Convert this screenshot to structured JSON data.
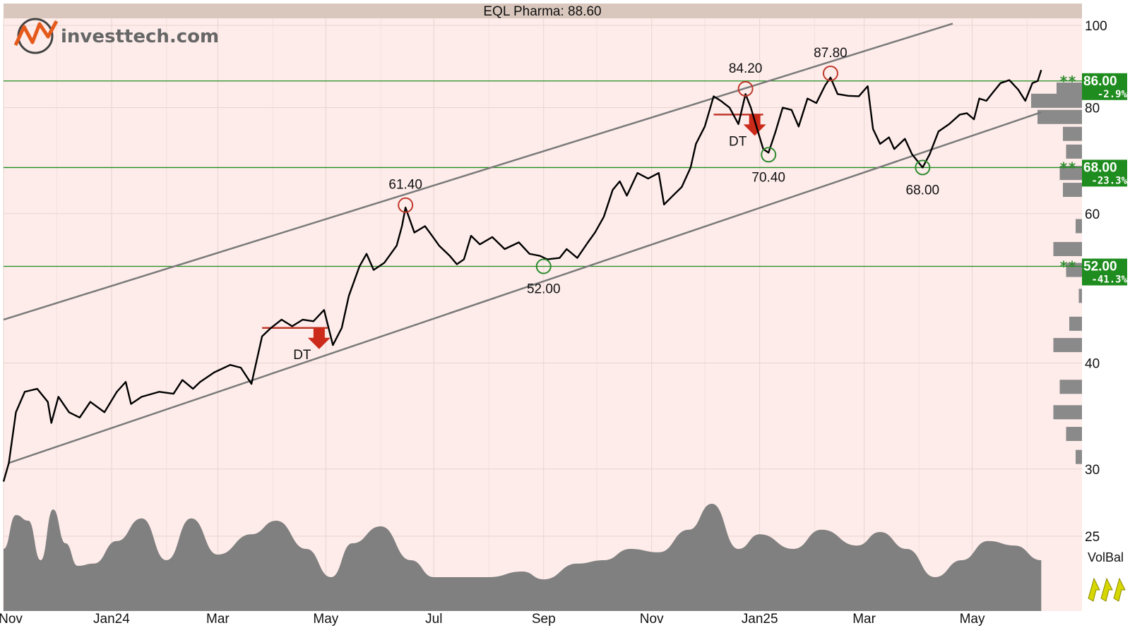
{
  "chart_data": {
    "type": "line",
    "title": "EQL Pharma: 88.60",
    "y_scale": "log",
    "ylim": [
      25,
      100
    ],
    "y_ticks": [
      "100",
      "80",
      "60",
      "40",
      "30",
      "25"
    ],
    "x_tick_labels": [
      {
        "label": "Nov",
        "date": "2023-11-01"
      },
      {
        "label": "Jan24",
        "date": "2024-01-01"
      },
      {
        "label": "Mar",
        "date": "2024-03-01"
      },
      {
        "label": "May",
        "date": "2024-05-01"
      },
      {
        "label": "Jul",
        "date": "2024-07-01"
      },
      {
        "label": "Sep",
        "date": "2024-09-01"
      },
      {
        "label": "Nov",
        "date": "2024-11-01"
      },
      {
        "label": "Jan25",
        "date": "2025-01-01"
      },
      {
        "label": "Mar",
        "date": "2025-03-01"
      },
      {
        "label": "May",
        "date": "2025-05-01"
      }
    ],
    "price_series": {
      "name": "EQL Pharma",
      "points": [
        [
          "2023-11-01",
          29
        ],
        [
          "2023-11-04",
          30.5
        ],
        [
          "2023-11-08",
          35
        ],
        [
          "2023-11-13",
          37
        ],
        [
          "2023-11-20",
          37.3
        ],
        [
          "2023-11-26",
          36
        ],
        [
          "2023-11-28",
          34
        ],
        [
          "2023-12-02",
          36.5
        ],
        [
          "2023-12-08",
          35
        ],
        [
          "2023-12-14",
          34.5
        ],
        [
          "2023-12-20",
          36
        ],
        [
          "2023-12-28",
          35
        ],
        [
          "2024-01-04",
          37
        ],
        [
          "2024-01-09",
          38
        ],
        [
          "2024-01-12",
          35.8
        ],
        [
          "2024-01-18",
          36.5
        ],
        [
          "2024-01-28",
          37
        ],
        [
          "2024-02-05",
          36.8
        ],
        [
          "2024-02-10",
          38.2
        ],
        [
          "2024-02-16",
          37.3
        ],
        [
          "2024-02-20",
          38
        ],
        [
          "2024-02-28",
          39
        ],
        [
          "2024-03-08",
          39.8
        ],
        [
          "2024-03-14",
          39.5
        ],
        [
          "2024-03-20",
          37.8
        ],
        [
          "2024-03-26",
          43
        ],
        [
          "2024-03-31",
          44
        ],
        [
          "2024-04-06",
          45
        ],
        [
          "2024-04-12",
          44.2
        ],
        [
          "2024-04-18",
          45
        ],
        [
          "2024-04-24",
          44.8
        ],
        [
          "2024-04-30",
          46.2
        ],
        [
          "2024-05-05",
          42
        ],
        [
          "2024-05-10",
          44
        ],
        [
          "2024-05-14",
          48
        ],
        [
          "2024-05-20",
          52
        ],
        [
          "2024-05-24",
          53.8
        ],
        [
          "2024-05-28",
          51.5
        ],
        [
          "2024-06-03",
          52.5
        ],
        [
          "2024-06-10",
          55
        ],
        [
          "2024-06-13",
          58
        ],
        [
          "2024-06-15",
          61
        ],
        [
          "2024-06-20",
          57
        ],
        [
          "2024-06-26",
          58
        ],
        [
          "2024-06-30",
          56.5
        ],
        [
          "2024-07-04",
          55
        ],
        [
          "2024-07-10",
          53.5
        ],
        [
          "2024-07-14",
          52.3
        ],
        [
          "2024-07-18",
          53
        ],
        [
          "2024-07-22",
          56.5
        ],
        [
          "2024-07-27",
          55.2
        ],
        [
          "2024-08-03",
          56.3
        ],
        [
          "2024-08-10",
          54.5
        ],
        [
          "2024-08-18",
          55.5
        ],
        [
          "2024-08-24",
          53.8
        ],
        [
          "2024-08-30",
          53.5
        ],
        [
          "2024-09-03",
          53
        ],
        [
          "2024-09-10",
          53.2
        ],
        [
          "2024-09-14",
          54.5
        ],
        [
          "2024-09-20",
          53.2
        ],
        [
          "2024-09-26",
          55.5
        ],
        [
          "2024-09-30",
          57
        ],
        [
          "2024-10-05",
          59.5
        ],
        [
          "2024-10-10",
          64
        ],
        [
          "2024-10-14",
          65.5
        ],
        [
          "2024-10-18",
          63
        ],
        [
          "2024-10-24",
          67
        ],
        [
          "2024-10-30",
          66
        ],
        [
          "2024-11-05",
          67
        ],
        [
          "2024-11-08",
          61.5
        ],
        [
          "2024-11-13",
          63
        ],
        [
          "2024-11-18",
          64.5
        ],
        [
          "2024-11-23",
          68
        ],
        [
          "2024-11-26",
          72.5
        ],
        [
          "2024-12-01",
          76
        ],
        [
          "2024-12-06",
          82.5
        ],
        [
          "2024-12-10",
          81.5
        ],
        [
          "2024-12-15",
          80
        ],
        [
          "2024-12-20",
          76.5
        ],
        [
          "2024-12-24",
          83
        ],
        [
          "2024-12-27",
          80
        ],
        [
          "2024-12-31",
          75
        ],
        [
          "2025-01-03",
          71.5
        ],
        [
          "2025-01-06",
          70.8
        ],
        [
          "2025-01-10",
          75
        ],
        [
          "2025-01-14",
          80
        ],
        [
          "2025-01-19",
          79.5
        ],
        [
          "2025-01-23",
          76
        ],
        [
          "2025-01-28",
          82
        ],
        [
          "2025-02-02",
          81
        ],
        [
          "2025-02-07",
          85
        ],
        [
          "2025-02-10",
          86.8
        ],
        [
          "2025-02-14",
          83
        ],
        [
          "2025-02-20",
          82.6
        ],
        [
          "2025-02-26",
          82.5
        ],
        [
          "2025-03-03",
          84.8
        ],
        [
          "2025-03-06",
          75.5
        ],
        [
          "2025-03-10",
          72.5
        ],
        [
          "2025-03-15",
          73.8
        ],
        [
          "2025-03-18",
          71.5
        ],
        [
          "2025-03-24",
          73.5
        ],
        [
          "2025-03-28",
          70.5
        ],
        [
          "2025-04-03",
          68
        ],
        [
          "2025-04-07",
          70.5
        ],
        [
          "2025-04-12",
          75
        ],
        [
          "2025-04-18",
          76.5
        ],
        [
          "2025-04-24",
          78.5
        ],
        [
          "2025-04-28",
          78.8
        ],
        [
          "2025-05-02",
          77.5
        ],
        [
          "2025-05-05",
          82
        ],
        [
          "2025-05-09",
          81.5
        ],
        [
          "2025-05-13",
          83.5
        ],
        [
          "2025-05-17",
          85.5
        ],
        [
          "2025-05-22",
          86.2
        ],
        [
          "2025-05-27",
          84
        ],
        [
          "2025-05-31",
          81.5
        ],
        [
          "2025-06-04",
          85.5
        ],
        [
          "2025-06-07",
          86
        ],
        [
          "2025-06-09",
          88.6
        ]
      ]
    },
    "trend_channel": {
      "upper": [
        [
          "2023-11-01",
          45
        ],
        [
          "2025-04-20",
          100.5
        ]
      ],
      "lower": [
        [
          "2023-11-04",
          30.5
        ],
        [
          "2025-06-09",
          79
        ]
      ]
    },
    "support_resistance_levels": [
      {
        "value": 86.0,
        "label": "86.00",
        "pct": "-2.9%"
      },
      {
        "value": 68.0,
        "label": "68.00",
        "pct": "-23.3%"
      },
      {
        "value": 52.0,
        "label": "52.00",
        "pct": "-41.3%"
      }
    ],
    "peaks": [
      {
        "date": "2024-06-15",
        "value": 61.4,
        "label": "61.40",
        "kind": "top"
      },
      {
        "date": "2024-12-24",
        "value": 84.2,
        "label": "84.20",
        "kind": "top"
      },
      {
        "date": "2025-02-10",
        "value": 87.8,
        "label": "87.80",
        "kind": "top"
      },
      {
        "date": "2024-09-01",
        "value": 52.0,
        "label": "52.00",
        "kind": "bottom"
      },
      {
        "date": "2025-01-06",
        "value": 70.4,
        "label": "70.40",
        "kind": "bottom"
      },
      {
        "date": "2025-04-03",
        "value": 68.0,
        "label": "68.00",
        "kind": "bottom"
      }
    ],
    "patterns": [
      {
        "label": "DT",
        "neckline_value": 44,
        "start_date": "2024-03-26",
        "end_date": "2024-05-02"
      },
      {
        "label": "DT",
        "neckline_value": 78.5,
        "start_date": "2024-12-06",
        "end_date": "2025-01-03"
      }
    ],
    "volume_balance": {
      "label": "VolBal",
      "points": [
        [
          "2023-11-01",
          0.55
        ],
        [
          "2023-11-08",
          0.85
        ],
        [
          "2023-11-15",
          0.8
        ],
        [
          "2023-11-22",
          0.45
        ],
        [
          "2023-11-29",
          0.9
        ],
        [
          "2023-12-06",
          0.6
        ],
        [
          "2023-12-13",
          0.4
        ],
        [
          "2023-12-22",
          0.42
        ],
        [
          "2024-01-04",
          0.62
        ],
        [
          "2024-01-18",
          0.82
        ],
        [
          "2024-02-01",
          0.45
        ],
        [
          "2024-02-15",
          0.82
        ],
        [
          "2024-03-01",
          0.5
        ],
        [
          "2024-03-20",
          0.68
        ],
        [
          "2024-04-03",
          0.8
        ],
        [
          "2024-04-20",
          0.55
        ],
        [
          "2024-05-04",
          0.3
        ],
        [
          "2024-05-16",
          0.6
        ],
        [
          "2024-06-01",
          0.75
        ],
        [
          "2024-06-18",
          0.45
        ],
        [
          "2024-07-01",
          0.3
        ],
        [
          "2024-07-20",
          0.3
        ],
        [
          "2024-08-01",
          0.3
        ],
        [
          "2024-08-20",
          0.35
        ],
        [
          "2024-09-01",
          0.28
        ],
        [
          "2024-09-20",
          0.42
        ],
        [
          "2024-10-05",
          0.45
        ],
        [
          "2024-10-20",
          0.55
        ],
        [
          "2024-11-05",
          0.52
        ],
        [
          "2024-11-22",
          0.72
        ],
        [
          "2024-12-05",
          0.95
        ],
        [
          "2024-12-20",
          0.55
        ],
        [
          "2025-01-01",
          0.68
        ],
        [
          "2025-01-20",
          0.55
        ],
        [
          "2025-02-05",
          0.72
        ],
        [
          "2025-02-25",
          0.58
        ],
        [
          "2025-03-10",
          0.7
        ],
        [
          "2025-03-25",
          0.55
        ],
        [
          "2025-04-10",
          0.3
        ],
        [
          "2025-04-25",
          0.45
        ],
        [
          "2025-05-10",
          0.62
        ],
        [
          "2025-05-25",
          0.58
        ],
        [
          "2025-06-09",
          0.45
        ]
      ]
    },
    "volume_profile": [
      {
        "price": 84,
        "width": 0.4
      },
      {
        "price": 81.5,
        "width": 0.8
      },
      {
        "price": 78,
        "width": 0.7
      },
      {
        "price": 74.5,
        "width": 0.3
      },
      {
        "price": 71,
        "width": 0.25
      },
      {
        "price": 67,
        "width": 0.35
      },
      {
        "price": 64,
        "width": 0.3
      },
      {
        "price": 58,
        "width": 0.1
      },
      {
        "price": 54.5,
        "width": 0.45
      },
      {
        "price": 51.5,
        "width": 0.25
      },
      {
        "price": 48,
        "width": 0.05
      },
      {
        "price": 44.5,
        "width": 0.2
      },
      {
        "price": 42,
        "width": 0.45
      },
      {
        "price": 37.5,
        "width": 0.35
      },
      {
        "price": 35,
        "width": 0.45
      },
      {
        "price": 33,
        "width": 0.25
      },
      {
        "price": 31,
        "width": 0.1
      }
    ],
    "grid": true,
    "line_color": "#000000",
    "up_signal_color": "#c0392b",
    "down_signal_color": "#2e8b2e",
    "background_color": "#fdecea",
    "level_color": "#1e8c1e"
  },
  "brand": {
    "logo_text": "investtech.com",
    "logo_icon": "investtech-logo-icon"
  },
  "volbal_icons": [
    "up-arrow-icon",
    "up-arrow-icon",
    "up-arrow-icon"
  ]
}
